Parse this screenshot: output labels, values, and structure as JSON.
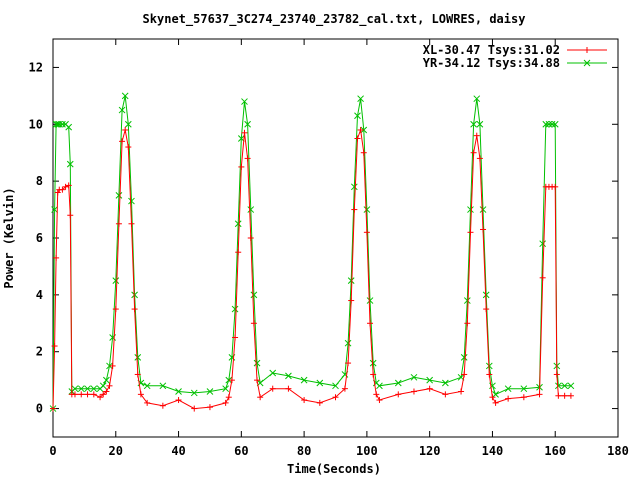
{
  "chart_data": {
    "type": "line",
    "title": "Skynet_57637_3C274_23740_23782_cal.txt, LOWRES, daisy",
    "xlabel": "Time(Seconds)",
    "ylabel": "Power (Kelvin)",
    "xlim": [
      0,
      180
    ],
    "ylim": [
      -1,
      13
    ],
    "xticks": [
      0,
      20,
      40,
      60,
      80,
      100,
      120,
      140,
      160,
      180
    ],
    "yticks": [
      0,
      2,
      4,
      6,
      8,
      10,
      12
    ],
    "grid": false,
    "legend_position": "top-right",
    "series": [
      {
        "name": "XL-30.47 Tsys:31.02",
        "color": "#ff0000",
        "marker": "plus",
        "x": [
          0.0,
          0.5,
          1.0,
          1.5,
          2.0,
          3.0,
          4.0,
          5.0,
          5.5,
          6.0,
          7,
          9,
          11,
          13,
          15,
          16,
          17,
          18,
          19,
          20,
          21,
          22,
          23,
          24,
          25,
          26,
          27,
          28,
          30,
          35,
          40,
          45,
          50,
          55,
          56,
          57,
          58,
          59,
          60,
          61,
          62,
          63,
          64,
          65,
          66,
          70,
          75,
          80,
          85,
          90,
          93,
          94,
          95,
          96,
          97,
          98,
          99,
          100,
          101,
          102,
          103,
          104,
          110,
          115,
          120,
          125,
          130,
          131,
          132,
          133,
          134,
          135,
          136,
          137,
          138,
          139,
          140,
          141,
          145,
          150,
          155,
          156,
          157,
          158,
          159,
          160,
          160.5,
          161,
          163,
          165
        ],
        "y": [
          0.0,
          2.2,
          5.3,
          7.6,
          7.7,
          7.7,
          7.8,
          7.85,
          6.8,
          0.5,
          0.5,
          0.5,
          0.5,
          0.5,
          0.4,
          0.5,
          0.6,
          0.8,
          1.5,
          3.5,
          6.5,
          9.4,
          9.8,
          9.2,
          6.5,
          3.5,
          1.2,
          0.5,
          0.2,
          0.1,
          0.3,
          0.0,
          0.05,
          0.2,
          0.4,
          1.0,
          2.5,
          5.5,
          8.5,
          9.7,
          8.8,
          6.0,
          3.0,
          1.0,
          0.4,
          0.7,
          0.7,
          0.3,
          0.2,
          0.4,
          0.7,
          1.6,
          3.8,
          7.0,
          9.5,
          9.8,
          9.0,
          6.2,
          3.0,
          1.2,
          0.5,
          0.3,
          0.5,
          0.6,
          0.7,
          0.5,
          0.6,
          1.2,
          3.0,
          6.2,
          9.0,
          9.6,
          8.8,
          6.3,
          3.5,
          1.2,
          0.4,
          0.2,
          0.35,
          0.4,
          0.5,
          4.6,
          7.8,
          7.8,
          7.8,
          7.8,
          1.2,
          0.45,
          0.45,
          0.45
        ]
      },
      {
        "name": "YR-34.12 Tsys:34.88",
        "color": "#00c000",
        "marker": "cross",
        "x": [
          0.0,
          0.5,
          1.0,
          1.5,
          2.0,
          3.0,
          4.0,
          5.0,
          5.5,
          6.0,
          7,
          9,
          11,
          13,
          15,
          16,
          17,
          18,
          19,
          20,
          21,
          22,
          23,
          24,
          25,
          26,
          27,
          28,
          30,
          35,
          40,
          45,
          50,
          55,
          56,
          57,
          58,
          59,
          60,
          61,
          62,
          63,
          64,
          65,
          66,
          70,
          75,
          80,
          85,
          90,
          93,
          94,
          95,
          96,
          97,
          98,
          99,
          100,
          101,
          102,
          103,
          104,
          110,
          115,
          120,
          125,
          130,
          131,
          132,
          133,
          134,
          135,
          136,
          137,
          138,
          139,
          140,
          141,
          145,
          150,
          155,
          156,
          157,
          158,
          159,
          160,
          160.5,
          161,
          163,
          165
        ],
        "y": [
          0.0,
          7.0,
          10.0,
          10.0,
          10.0,
          10.0,
          10.0,
          9.9,
          8.6,
          0.6,
          0.7,
          0.7,
          0.7,
          0.7,
          0.7,
          0.8,
          1.0,
          1.5,
          2.5,
          4.5,
          7.5,
          10.5,
          11.0,
          10.0,
          7.3,
          4.0,
          1.8,
          0.9,
          0.8,
          0.8,
          0.6,
          0.55,
          0.6,
          0.7,
          1.0,
          1.8,
          3.5,
          6.5,
          9.5,
          10.8,
          10.0,
          7.0,
          4.0,
          1.6,
          0.9,
          1.25,
          1.15,
          1.0,
          0.9,
          0.8,
          1.2,
          2.3,
          4.5,
          7.8,
          10.3,
          10.9,
          9.8,
          7.0,
          3.8,
          1.6,
          0.9,
          0.8,
          0.9,
          1.1,
          1.0,
          0.9,
          1.1,
          1.8,
          3.8,
          7.0,
          10.0,
          10.9,
          10.0,
          7.0,
          4.0,
          1.5,
          0.8,
          0.5,
          0.7,
          0.7,
          0.75,
          5.8,
          10.0,
          10.0,
          10.0,
          10.0,
          1.5,
          0.8,
          0.8,
          0.8
        ]
      }
    ]
  }
}
